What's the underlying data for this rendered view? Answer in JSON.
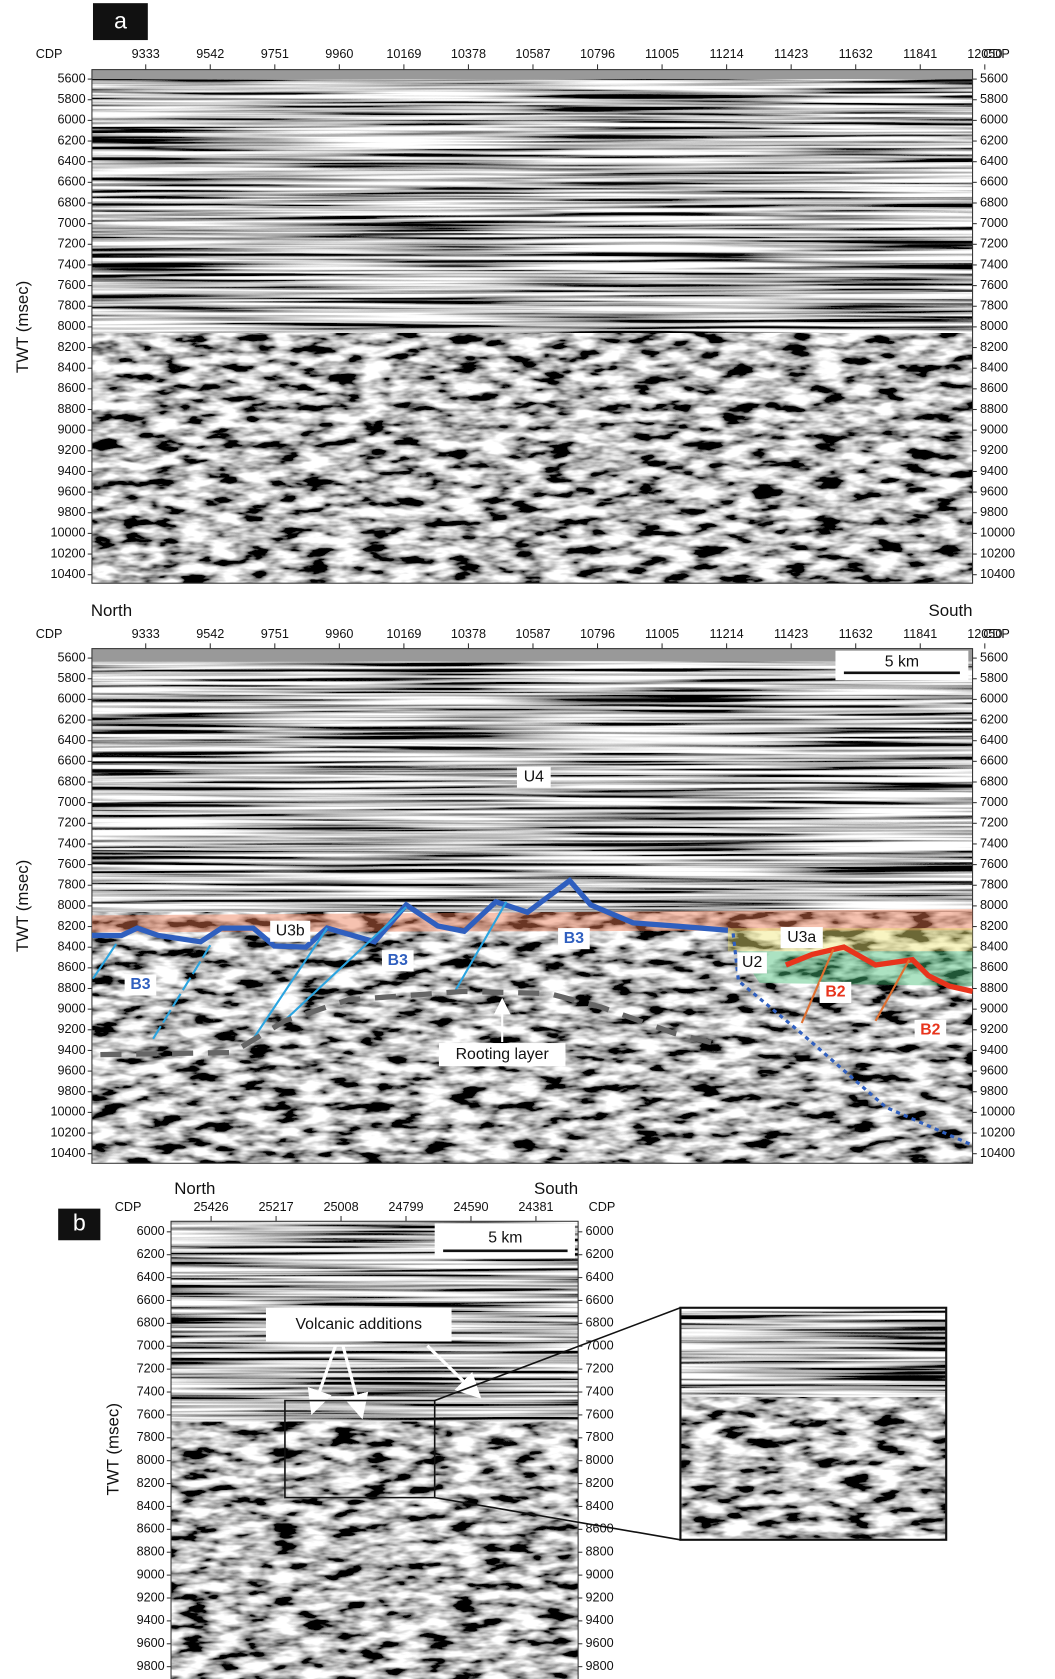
{
  "panel_a": {
    "label": "a",
    "top_section": {
      "cdp_label": "CDP",
      "cdp_ticks": [
        9333,
        9542,
        9751,
        9960,
        10169,
        10378,
        10587,
        10796,
        11005,
        11214,
        11423,
        11632,
        11841,
        12050
      ],
      "y_label": "TWT (msec)",
      "twt_ticks": [
        5600,
        5800,
        6000,
        6200,
        6400,
        6600,
        6800,
        7000,
        7200,
        7400,
        7600,
        7800,
        8000,
        8200,
        8400,
        8600,
        8800,
        9000,
        9200,
        9400,
        9600,
        9800,
        10000,
        10200,
        10400
      ]
    },
    "interpreted_section": {
      "north": "North",
      "south": "South",
      "cdp_label": "CDP",
      "cdp_ticks": [
        9333,
        9542,
        9751,
        9960,
        10169,
        10378,
        10587,
        10796,
        11005,
        11214,
        11423,
        11632,
        11841,
        12050
      ],
      "y_label": "TWT (msec)",
      "twt_ticks": [
        5600,
        5800,
        6000,
        6200,
        6400,
        6600,
        6800,
        7000,
        7200,
        7400,
        7600,
        7800,
        8000,
        8200,
        8400,
        8600,
        8800,
        9000,
        9200,
        9400,
        9600,
        9800,
        10000,
        10200,
        10400
      ],
      "scale_bar": "5 km",
      "annotations": [
        "U4",
        "U3b",
        "B3",
        "B3",
        "B3",
        "U3a",
        "U2",
        "B2",
        "B2",
        "Rooting layer"
      ]
    }
  },
  "panel_b": {
    "label": "b",
    "section": {
      "north": "North",
      "south": "South",
      "cdp_label": "CDP",
      "cdp_ticks": [
        25426,
        25217,
        25008,
        24799,
        24590,
        24381
      ],
      "y_label": "TWT (msec)",
      "twt_ticks": [
        6000,
        6200,
        6400,
        6600,
        6800,
        7000,
        7200,
        7400,
        7600,
        7800,
        8000,
        8200,
        8400,
        8600,
        8800,
        9000,
        9200,
        9400,
        9600,
        9800
      ],
      "scale_bar": "5 km",
      "annotation": "Volcanic additions"
    }
  }
}
